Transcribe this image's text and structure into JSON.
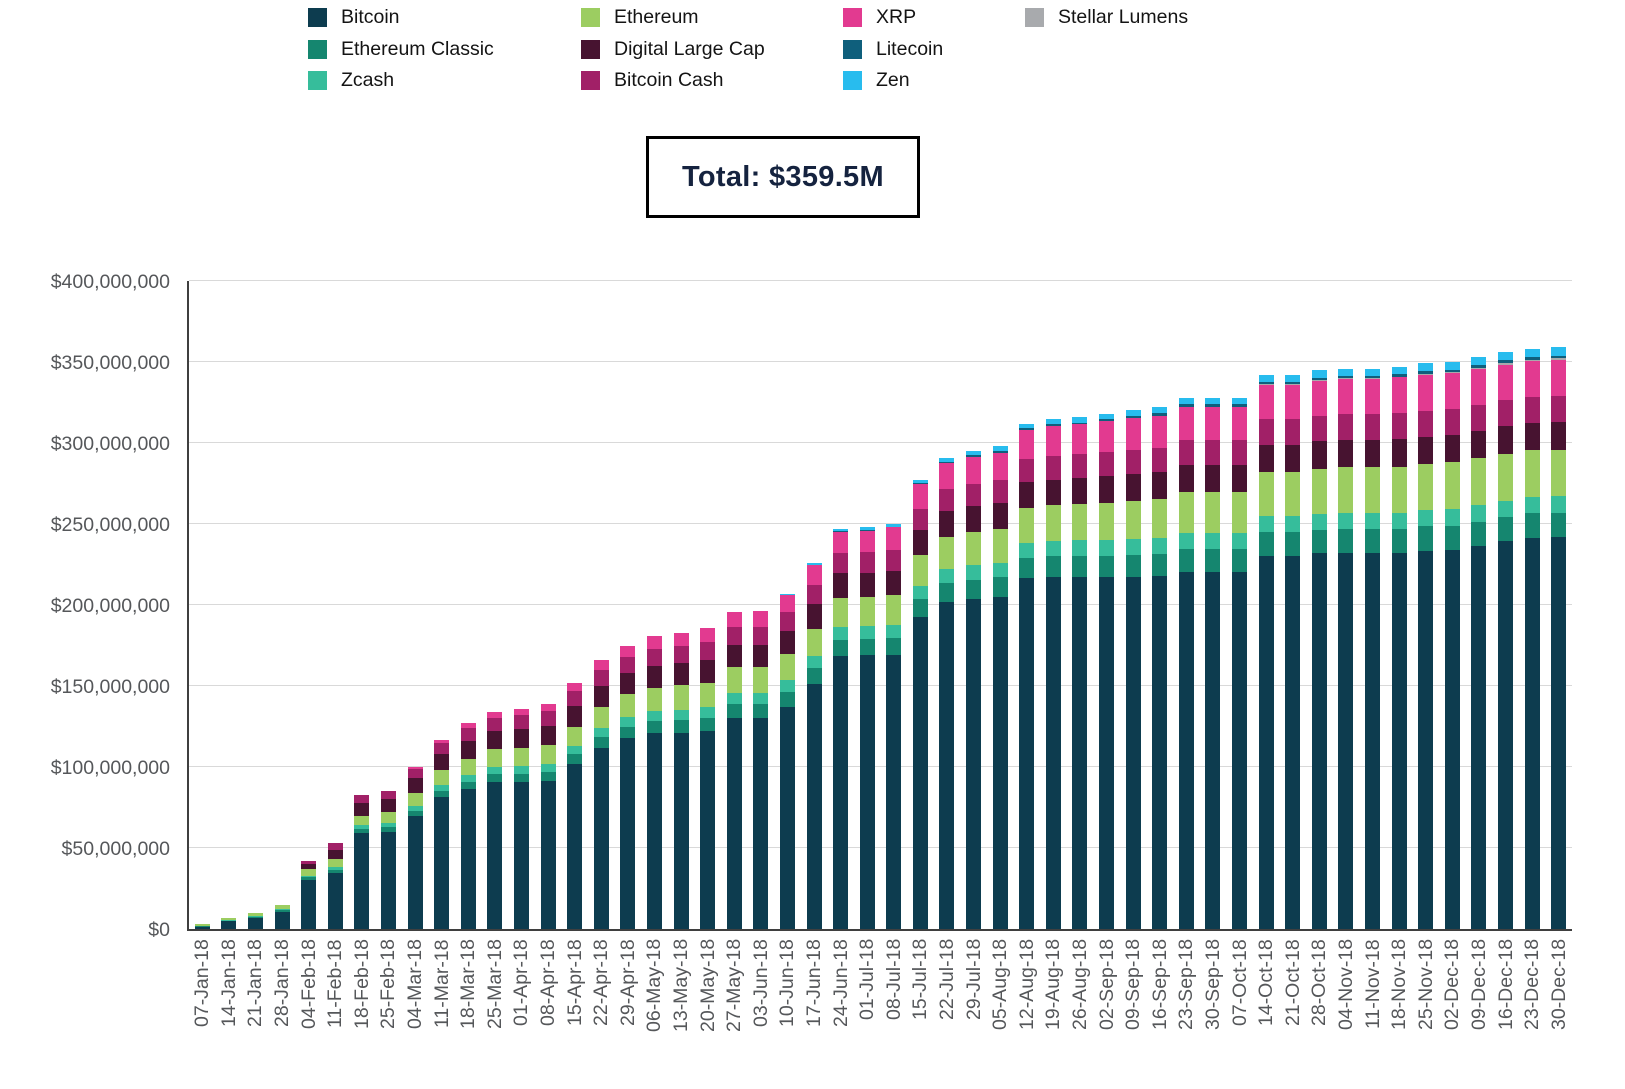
{
  "total_box": {
    "label": "Total: $359.5M"
  },
  "legend": {
    "columns": [
      [
        "Bitcoin",
        "Ethereum Classic",
        "Zcash"
      ],
      [
        "Ethereum",
        "Digital Large Cap",
        "Bitcoin Cash"
      ],
      [
        "XRP",
        "Litecoin",
        "Zen"
      ],
      [
        "Stellar Lumens"
      ]
    ]
  },
  "chart_data": {
    "type": "bar",
    "stacked": true,
    "title": "",
    "xlabel": "",
    "ylabel": "",
    "values_unit": "USD millions",
    "ylim": [
      0,
      400000000
    ],
    "grid": "horizontal",
    "legend_position": "top",
    "y_tick_labels": [
      "$0",
      "$50,000,000",
      "$100,000,000",
      "$150,000,000",
      "$200,000,000",
      "$250,000,000",
      "$300,000,000",
      "$350,000,000",
      "$400,000,000"
    ],
    "categories": [
      "07-Jan-18",
      "14-Jan-18",
      "21-Jan-18",
      "28-Jan-18",
      "04-Feb-18",
      "11-Feb-18",
      "18-Feb-18",
      "25-Feb-18",
      "04-Mar-18",
      "11-Mar-18",
      "18-Mar-18",
      "25-Mar-18",
      "01-Apr-18",
      "08-Apr-18",
      "15-Apr-18",
      "22-Apr-18",
      "29-Apr-18",
      "06-May-18",
      "13-May-18",
      "20-May-18",
      "27-May-18",
      "03-Jun-18",
      "10-Jun-18",
      "17-Jun-18",
      "24-Jun-18",
      "01-Jul-18",
      "08-Jul-18",
      "15-Jul-18",
      "22-Jul-18",
      "29-Jul-18",
      "05-Aug-18",
      "12-Aug-18",
      "19-Aug-18",
      "26-Aug-18",
      "02-Sep-18",
      "09-Sep-18",
      "16-Sep-18",
      "23-Sep-18",
      "30-Sep-18",
      "07-Oct-18",
      "14-Oct-18",
      "21-Oct-18",
      "28-Oct-18",
      "04-Nov-18",
      "11-Nov-18",
      "18-Nov-18",
      "25-Nov-18",
      "02-Dec-18",
      "09-Dec-18",
      "16-Dec-18",
      "23-Dec-18",
      "30-Dec-18"
    ],
    "series": [
      {
        "name": "Bitcoin",
        "color": "#0d3c4f",
        "values": [
          1.5,
          4.7,
          6.8,
          10.8,
          30.5,
          34.5,
          59.5,
          60,
          69.5,
          81.5,
          86.5,
          91,
          91,
          91.5,
          102,
          112,
          118,
          121,
          121,
          122.5,
          130.5,
          130.5,
          137,
          151.5,
          168.5,
          169,
          169,
          192.5,
          202,
          203.5,
          205,
          216.5,
          217.5,
          217.5,
          217.5,
          217.5,
          218,
          220.5,
          220.5,
          220.5,
          230.5,
          230.5,
          232,
          232,
          232,
          232,
          233.5,
          234,
          236.5,
          239.5,
          241.5,
          242
        ]
      },
      {
        "name": "Ethereum Classic",
        "color": "#15866f",
        "values": [
          0.3,
          0.5,
          0.7,
          1,
          1.5,
          2,
          2.5,
          3,
          3.5,
          4,
          4.5,
          5,
          5,
          5.5,
          6,
          6.5,
          7,
          7.5,
          8,
          8,
          8.5,
          8.5,
          9,
          9.5,
          10,
          10,
          10.5,
          11,
          11.5,
          12,
          12,
          12.5,
          12.5,
          13,
          13,
          13.5,
          13.5,
          14,
          14,
          14,
          14.5,
          14.5,
          14.5,
          15,
          15,
          15,
          15,
          15,
          15,
          15,
          15,
          15
        ]
      },
      {
        "name": "Zcash",
        "color": "#36bd9b",
        "values": [
          0.2,
          0.3,
          0.5,
          0.7,
          1,
          1.5,
          2,
          2.5,
          3,
          3.5,
          4,
          4,
          4.5,
          5,
          5,
          5.5,
          6,
          6,
          6.5,
          6.5,
          7,
          7,
          7.5,
          7.5,
          8,
          8,
          8,
          8.5,
          8.5,
          9,
          9,
          9,
          9.5,
          9.5,
          9.5,
          10,
          10,
          10,
          10,
          10,
          10,
          10,
          10,
          10,
          10,
          10,
          10,
          10,
          10,
          10,
          10,
          10
        ]
      },
      {
        "name": "Ethereum",
        "color": "#9ccd61",
        "values": [
          1,
          1.5,
          2,
          2.5,
          4,
          5,
          6,
          6.5,
          8,
          9,
          10,
          11,
          11,
          11.5,
          12,
          13,
          14,
          14.5,
          15,
          15,
          15.5,
          15.5,
          16,
          17,
          18,
          18,
          18.5,
          19,
          20,
          20.5,
          21,
          22,
          22,
          22.5,
          23,
          23.5,
          24,
          25,
          25,
          25,
          27,
          27,
          27.5,
          28,
          28,
          28.5,
          28.5,
          29,
          29,
          29,
          29,
          29
        ]
      },
      {
        "name": "Digital Large Cap",
        "color": "#471330",
        "values": [
          0,
          0,
          0,
          0,
          3,
          6,
          8,
          8,
          9,
          10,
          11,
          11.5,
          12,
          12,
          12.5,
          13,
          13,
          13.5,
          13.5,
          14,
          14,
          14,
          14.5,
          15,
          15,
          15,
          15,
          15.5,
          16,
          16,
          16,
          16,
          16,
          16,
          16.5,
          16.5,
          16.5,
          17,
          17,
          17,
          17,
          17,
          17,
          17,
          17,
          17,
          17,
          17,
          17,
          17,
          17,
          17
        ]
      },
      {
        "name": "Bitcoin Cash",
        "color": "#a12067",
        "values": [
          0,
          0,
          0,
          0,
          2,
          4,
          5,
          5,
          6,
          7,
          8,
          8,
          8.5,
          9,
          9.5,
          10,
          10,
          10.5,
          10.5,
          11,
          11,
          11,
          11.5,
          12,
          12.5,
          12.5,
          13,
          13,
          13.5,
          14,
          14,
          14,
          14.5,
          14.5,
          15,
          15,
          15,
          15.5,
          15.5,
          15.5,
          16,
          16,
          16,
          16,
          16,
          16,
          16,
          16,
          16,
          16,
          16,
          16
        ]
      },
      {
        "name": "XRP",
        "color": "#e23a90",
        "values": [
          0,
          0,
          0,
          0,
          0,
          0,
          0,
          0,
          1,
          2,
          3,
          3.5,
          4,
          4.5,
          5,
          6,
          7,
          8,
          8.5,
          9,
          9.5,
          10,
          11,
          12,
          13,
          13.5,
          14,
          15,
          16,
          16.5,
          17,
          18,
          18.5,
          18.5,
          19,
          19.5,
          20,
          20.5,
          20.5,
          20.5,
          21,
          21,
          21.5,
          21.5,
          21.5,
          22,
          22,
          22,
          22,
          22,
          22,
          22.5
        ]
      },
      {
        "name": "Stellar Lumens",
        "color": "#a8aaad",
        "values": [
          0,
          0,
          0,
          0,
          0,
          0,
          0,
          0,
          0,
          0,
          0,
          0,
          0,
          0,
          0,
          0,
          0,
          0,
          0,
          0,
          0,
          0,
          0,
          0,
          0,
          0,
          0,
          0,
          0,
          0,
          0,
          0,
          0,
          0,
          0,
          0,
          0,
          0,
          0,
          0,
          0.3,
          0.4,
          0.5,
          0.5,
          0.5,
          0.6,
          0.7,
          0.8,
          0.9,
          1,
          1,
          1
        ]
      },
      {
        "name": "Litecoin",
        "color": "#0f5f7c",
        "values": [
          0,
          0,
          0,
          0,
          0,
          0,
          0,
          0,
          0,
          0,
          0,
          0,
          0,
          0,
          0,
          0,
          0,
          0,
          0,
          0,
          0,
          0,
          0,
          0.3,
          0.5,
          0.5,
          0.5,
          0.7,
          0.8,
          1,
          1,
          1,
          1,
          1,
          1.2,
          1.2,
          1.3,
          1.3,
          1.3,
          1.3,
          1.4,
          1.4,
          1.4,
          1.5,
          1.5,
          1.5,
          1.5,
          1.5,
          1.5,
          1.5,
          1.5,
          1.5
        ]
      },
      {
        "name": "Zen",
        "color": "#28bcee",
        "values": [
          0,
          0,
          0,
          0,
          0,
          0,
          0,
          0,
          0,
          0,
          0,
          0,
          0,
          0,
          0,
          0,
          0,
          0,
          0,
          0,
          0,
          0,
          0.5,
          1,
          1.5,
          1.5,
          1.5,
          2,
          2.5,
          2.5,
          3,
          3,
          3.5,
          3.5,
          3.5,
          4,
          4,
          4,
          4,
          4,
          4.5,
          4.5,
          4.5,
          4.5,
          4.5,
          4.5,
          5,
          5,
          5,
          5,
          5,
          5.5
        ]
      }
    ]
  }
}
